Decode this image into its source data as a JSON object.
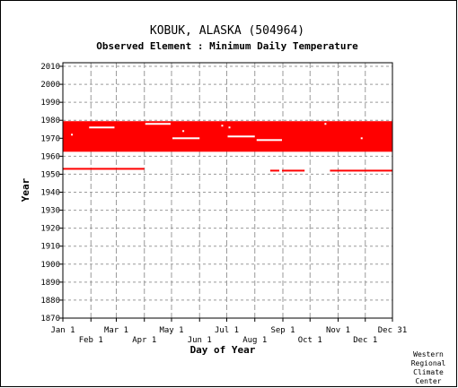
{
  "chart_data": {
    "type": "scatter",
    "title": "KOBUK, ALASKA   (504964)",
    "subtitle": "Observed Element : Minimum Daily Temperature",
    "xlabel": "Day of Year",
    "ylabel": "Year",
    "xlim": [
      1,
      365
    ],
    "ylim": [
      1870,
      2012
    ],
    "grid": true,
    "x_ticks_upper": [
      {
        "label": "Jan 1",
        "day": 1
      },
      {
        "label": "Mar 1",
        "day": 60
      },
      {
        "label": "May 1",
        "day": 121
      },
      {
        "label": "Jul 1",
        "day": 182
      },
      {
        "label": "Sep 1",
        "day": 244
      },
      {
        "label": "Nov 1",
        "day": 305
      },
      {
        "label": "Dec 31",
        "day": 365
      }
    ],
    "x_ticks_lower": [
      {
        "label": "Feb 1",
        "day": 32
      },
      {
        "label": "Apr 1",
        "day": 91
      },
      {
        "label": "Jun 1",
        "day": 152
      },
      {
        "label": "Aug 1",
        "day": 213
      },
      {
        "label": "Oct 1",
        "day": 274
      },
      {
        "label": "Dec 1",
        "day": 335
      }
    ],
    "y_ticks": [
      2010,
      2000,
      1990,
      1980,
      1970,
      1960,
      1950,
      1940,
      1930,
      1920,
      1910,
      1900,
      1890,
      1880,
      1870
    ],
    "color": "#ff0000",
    "observed_ranges": [
      {
        "year_start": 1963,
        "year_end": 1979,
        "day_start": 1,
        "day_end": 365
      },
      {
        "year_start": 1953,
        "year_end": 1953,
        "day_start": 1,
        "day_end": 91
      },
      {
        "year_start": 1952,
        "year_end": 1952,
        "day_start": 230,
        "day_end": 240
      },
      {
        "year_start": 1952,
        "year_end": 1952,
        "day_start": 243,
        "day_end": 268
      },
      {
        "year_start": 1952,
        "year_end": 1952,
        "day_start": 296,
        "day_end": 365
      }
    ],
    "missing_gaps": [
      {
        "year": 1976,
        "day_start": 30,
        "day_end": 58
      },
      {
        "year": 1978,
        "day_start": 92,
        "day_end": 120
      },
      {
        "year": 1970,
        "day_start": 122,
        "day_end": 152
      },
      {
        "year": 1971,
        "day_start": 183,
        "day_end": 213
      },
      {
        "year": 1969,
        "day_start": 215,
        "day_end": 243
      },
      {
        "year": 1974,
        "day_start": 133,
        "day_end": 135
      },
      {
        "year": 1976,
        "day_start": 184,
        "day_end": 186
      },
      {
        "year": 1977,
        "day_start": 176,
        "day_end": 178
      },
      {
        "year": 1972,
        "day_start": 10,
        "day_end": 12
      },
      {
        "year": 1970,
        "day_start": 330,
        "day_end": 332
      },
      {
        "year": 1978,
        "day_start": 290,
        "day_end": 292
      }
    ]
  },
  "credit": [
    "Western",
    "Regional",
    "Climate",
    "Center"
  ]
}
